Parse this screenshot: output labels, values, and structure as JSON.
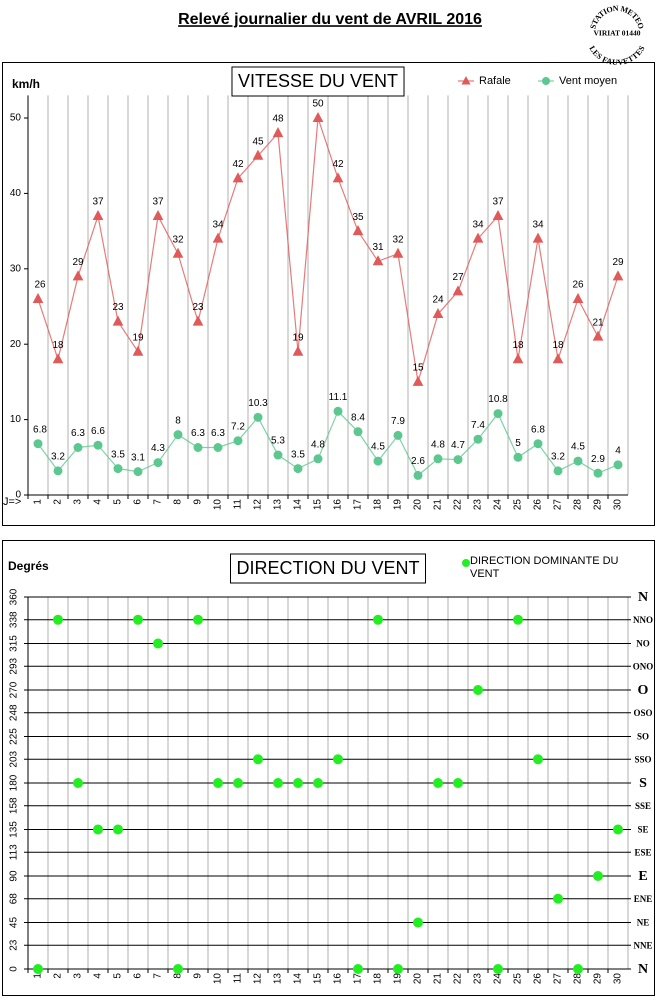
{
  "title": "Relevé journalier du vent de AVRIL 2016",
  "stamp": {
    "top": "STATION METEO",
    "middle": "VIRIAT 01440",
    "bottom": "LES FAUVETTES"
  },
  "chart_data": [
    {
      "type": "line",
      "title": "VITESSE DU VENT",
      "y_label": "km/h",
      "x_label": "J=>",
      "categories": [
        "1",
        "2",
        "3",
        "4",
        "5",
        "6",
        "7",
        "8",
        "9",
        "10",
        "11",
        "12",
        "13",
        "14",
        "15",
        "16",
        "17",
        "18",
        "19",
        "20",
        "21",
        "22",
        "23",
        "24",
        "25",
        "26",
        "27",
        "28",
        "29",
        "30"
      ],
      "ylim": [
        0,
        53
      ],
      "yticks": [
        0,
        10,
        20,
        30,
        40,
        50
      ],
      "grid": false,
      "vertical_grid": true,
      "legend": "top-right",
      "series": [
        {
          "name": "Rafale",
          "color": "#e05a5a",
          "marker": "triangle",
          "values": [
            26,
            18,
            29,
            37,
            23,
            19,
            37,
            32,
            23,
            34,
            42,
            45,
            48,
            19,
            50,
            42,
            35,
            31,
            32,
            15,
            24,
            27,
            34,
            37,
            18,
            34,
            18,
            26,
            21,
            29
          ]
        },
        {
          "name": "Vent moyen",
          "color": "#5cc890",
          "marker": "circle",
          "values": [
            6.8,
            3.2,
            6.3,
            6.6,
            3.5,
            3.1,
            4.3,
            8,
            6.3,
            6.3,
            7.2,
            10.3,
            5.3,
            3.5,
            4.8,
            11.1,
            8.4,
            4.5,
            7.9,
            2.6,
            4.8,
            4.7,
            7.4,
            10.8,
            5,
            6.8,
            3.2,
            4.5,
            2.9,
            4
          ]
        }
      ]
    },
    {
      "type": "scatter",
      "title": "DIRECTION DU VENT",
      "y_label": "Degrés",
      "categories": [
        "1",
        "2",
        "3",
        "4",
        "5",
        "6",
        "7",
        "8",
        "9",
        "10",
        "11",
        "12",
        "13",
        "14",
        "15",
        "16",
        "17",
        "18",
        "19",
        "20",
        "21",
        "22",
        "23",
        "24",
        "25",
        "26",
        "27",
        "28",
        "29",
        "30"
      ],
      "ylim": [
        0,
        360
      ],
      "yticks": [
        0,
        23,
        45,
        68,
        90,
        113,
        135,
        158,
        180,
        203,
        225,
        248,
        270,
        293,
        315,
        338,
        360
      ],
      "y2lim": [
        0,
        360
      ],
      "y2ticks": [
        {
          "value": 0,
          "label": "N"
        },
        {
          "value": 23,
          "label": "NNE"
        },
        {
          "value": 45,
          "label": "NE"
        },
        {
          "value": 68,
          "label": "ENE"
        },
        {
          "value": 90,
          "label": "E"
        },
        {
          "value": 113,
          "label": "ESE"
        },
        {
          "value": 135,
          "label": "SE"
        },
        {
          "value": 158,
          "label": "SSE"
        },
        {
          "value": 180,
          "label": "S"
        },
        {
          "value": 203,
          "label": "SSO"
        },
        {
          "value": 225,
          "label": "SO"
        },
        {
          "value": 248,
          "label": "OSO"
        },
        {
          "value": 270,
          "label": "O"
        },
        {
          "value": 293,
          "label": "ONO"
        },
        {
          "value": 315,
          "label": "NO"
        },
        {
          "value": 338,
          "label": "NNO"
        },
        {
          "value": 360,
          "label": "N"
        }
      ],
      "grid": true,
      "vertical_grid": true,
      "legend": "top-right",
      "series": [
        {
          "name": "DIRECTION DOMINANTE DU VENT",
          "color": "#22ee22",
          "marker": "circle",
          "values": [
            0,
            338,
            180,
            135,
            135,
            338,
            315,
            0,
            338,
            180,
            180,
            203,
            180,
            180,
            180,
            203,
            0,
            338,
            0,
            45,
            180,
            180,
            270,
            0,
            338,
            203,
            68,
            0,
            90,
            135
          ]
        }
      ]
    }
  ]
}
